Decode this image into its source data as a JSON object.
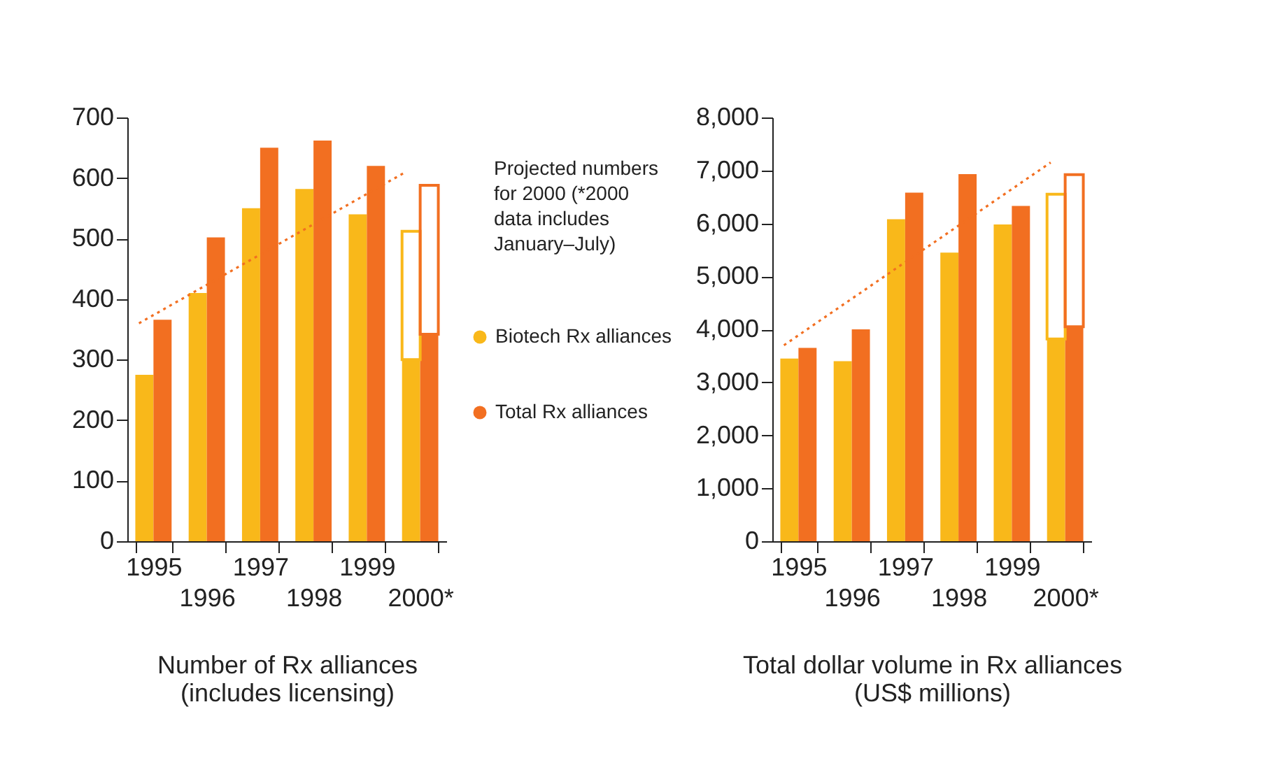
{
  "chart_data": [
    {
      "type": "bar",
      "xlabel": "Number of Rx alliances (includes licensing)",
      "categories": [
        "1995",
        "1996",
        "1997",
        "1998",
        "1999",
        "2000*"
      ],
      "ylim": [
        0,
        700
      ],
      "yticks": [
        0,
        100,
        200,
        300,
        400,
        500,
        600,
        700
      ],
      "legend": "right",
      "annotations": [
        "Projected numbers for 2000 (*2000 data includes January–July)"
      ],
      "series": [
        {
          "name": "Biotech Rx alliances",
          "color": "#f9b81a",
          "values": [
            275,
            410,
            550,
            582,
            540,
            300
          ]
        },
        {
          "name": "Total Rx alliances",
          "color": "#f26f21",
          "values": [
            366,
            502,
            650,
            662,
            620,
            342
          ]
        },
        {
          "color": "#f9b81a",
          "base": [
            null,
            null,
            null,
            null,
            null,
            300
          ],
          "values": [
            null,
            null,
            null,
            null,
            null,
            212
          ]
        },
        {
          "color": "#f26f21",
          "base": [
            null,
            null,
            null,
            null,
            null,
            342
          ],
          "values": [
            null,
            null,
            null,
            null,
            null,
            246
          ]
        },
        {
          "type": "line",
          "color": "#f26f21",
          "line_style": "dotted",
          "values": [
            360,
            410,
            460,
            510,
            560,
            610
          ]
        }
      ]
    },
    {
      "type": "bar",
      "xlabel": "Total dollar volume in Rx alliances (US$ millions)",
      "categories": [
        "1995",
        "1996",
        "1997",
        "1998",
        "1999",
        "2000*"
      ],
      "ylim": [
        0,
        8000
      ],
      "yticks": [
        0,
        {
          "value": 1000,
          "label": "1,000"
        },
        {
          "value": 2000,
          "label": "2,000"
        },
        {
          "value": 3000,
          "label": "3,000"
        },
        {
          "value": 4000,
          "label": "4,000"
        },
        {
          "value": 5000,
          "label": "5,000"
        },
        {
          "value": 6000,
          "label": "6,000"
        },
        {
          "value": 7000,
          "label": "7,000"
        },
        {
          "value": 8000,
          "label": "8,000"
        }
      ],
      "series": [
        {
          "color": "#f9b81a",
          "values": [
            3450,
            3400,
            6080,
            5450,
            5980,
            3820
          ]
        },
        {
          "color": "#f26f21",
          "values": [
            3650,
            4000,
            6580,
            6930,
            6330,
            4050
          ]
        },
        {
          "color": "#f9b81a",
          "base": [
            null,
            null,
            null,
            null,
            null,
            3820
          ],
          "values": [
            null,
            null,
            null,
            null,
            null,
            2730
          ]
        },
        {
          "color": "#f26f21",
          "base": [
            null,
            null,
            null,
            null,
            null,
            4050
          ],
          "values": [
            null,
            null,
            null,
            null,
            null,
            2870
          ]
        },
        {
          "type": "line",
          "color": "#f26f21",
          "line_style": "dotted",
          "values": [
            3700,
            4390,
            5080,
            5770,
            6460,
            7150
          ]
        }
      ]
    }
  ]
}
